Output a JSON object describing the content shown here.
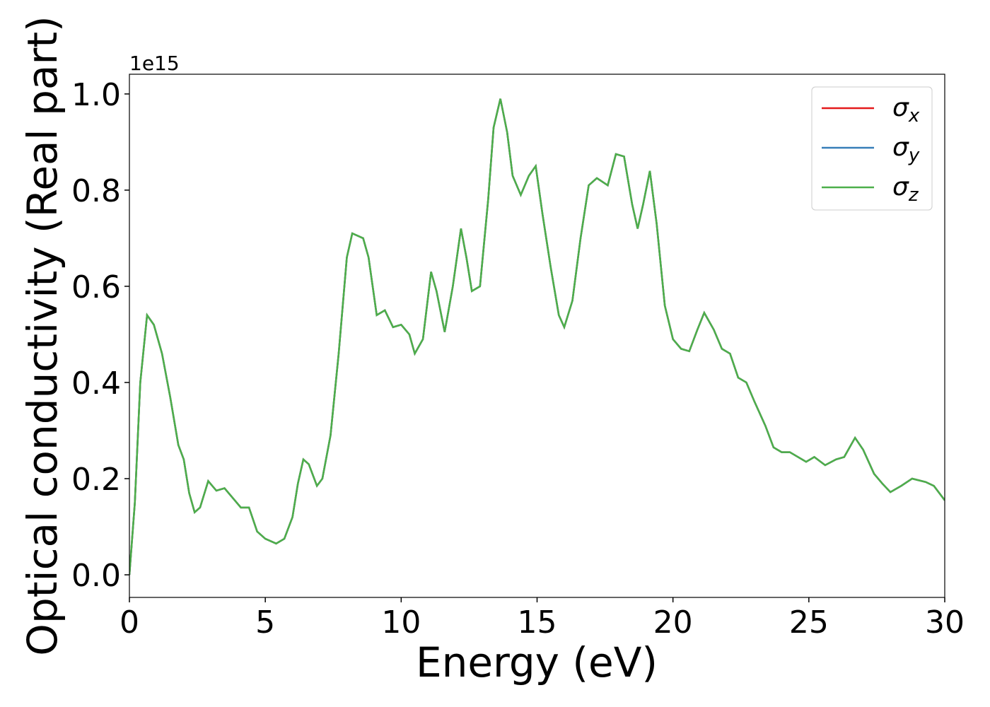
{
  "chart_data": {
    "type": "line",
    "xlabel": "Energy (eV)",
    "ylabel": "Optical conductivity (Real part)",
    "y_offset_label": "1e15",
    "xlim": [
      0,
      30
    ],
    "xticks": [
      0,
      5,
      10,
      15,
      20,
      25,
      30
    ],
    "ylim": [
      -0.047,
      1.041
    ],
    "yticks": [
      {
        "value": 0,
        "label": "0.0"
      },
      {
        "value": 0.2,
        "label": "0.2"
      },
      {
        "value": 0.4,
        "label": "0.4"
      },
      {
        "value": 0.6,
        "label": "0.6"
      },
      {
        "value": 0.8,
        "label": "0.8"
      },
      {
        "value": 1,
        "label": "1.0"
      }
    ],
    "legend": "upper right",
    "x": [
      0,
      0.2,
      0.4,
      0.65,
      0.9,
      1.2,
      1.5,
      1.8,
      2.0,
      2.2,
      2.4,
      2.6,
      2.9,
      3.2,
      3.5,
      3.8,
      4.1,
      4.4,
      4.7,
      5.0,
      5.4,
      5.7,
      6.0,
      6.2,
      6.4,
      6.6,
      6.9,
      7.1,
      7.4,
      7.7,
      8.0,
      8.2,
      8.6,
      8.8,
      9.1,
      9.4,
      9.7,
      10.0,
      10.3,
      10.5,
      10.8,
      11.1,
      11.3,
      11.6,
      11.9,
      12.2,
      12.4,
      12.6,
      12.9,
      13.2,
      13.4,
      13.65,
      13.9,
      14.1,
      14.4,
      14.7,
      14.95,
      15.2,
      15.5,
      15.8,
      16.0,
      16.3,
      16.6,
      16.9,
      17.2,
      17.6,
      17.9,
      18.2,
      18.5,
      18.7,
      18.9,
      19.15,
      19.4,
      19.7,
      20.0,
      20.3,
      20.6,
      20.9,
      21.15,
      21.5,
      21.8,
      22.1,
      22.4,
      22.7,
      23.0,
      23.4,
      23.7,
      24.0,
      24.3,
      24.9,
      25.2,
      25.6,
      26.0,
      26.3,
      26.7,
      27.0,
      27.4,
      27.7,
      28.0,
      28.4,
      28.8,
      29.3,
      29.6,
      30.0
    ],
    "series": [
      {
        "name": "σx",
        "color": "#e41a1c",
        "values": [
          0,
          0.15,
          0.4,
          0.54,
          0.52,
          0.46,
          0.37,
          0.27,
          0.24,
          0.17,
          0.13,
          0.14,
          0.195,
          0.175,
          0.18,
          0.16,
          0.14,
          0.14,
          0.09,
          0.075,
          0.065,
          0.075,
          0.12,
          0.19,
          0.24,
          0.23,
          0.185,
          0.2,
          0.29,
          0.46,
          0.66,
          0.71,
          0.7,
          0.66,
          0.54,
          0.55,
          0.515,
          0.52,
          0.5,
          0.46,
          0.49,
          0.63,
          0.59,
          0.505,
          0.6,
          0.72,
          0.66,
          0.59,
          0.6,
          0.78,
          0.93,
          0.99,
          0.92,
          0.83,
          0.79,
          0.83,
          0.85,
          0.75,
          0.64,
          0.54,
          0.515,
          0.57,
          0.7,
          0.81,
          0.825,
          0.81,
          0.875,
          0.87,
          0.77,
          0.72,
          0.77,
          0.84,
          0.73,
          0.56,
          0.49,
          0.47,
          0.465,
          0.51,
          0.545,
          0.51,
          0.47,
          0.46,
          0.41,
          0.4,
          0.36,
          0.31,
          0.265,
          0.255,
          0.255,
          0.235,
          0.245,
          0.228,
          0.24,
          0.245,
          0.285,
          0.26,
          0.21,
          0.19,
          0.172,
          0.185,
          0.2,
          0.193,
          0.185,
          0.155
        ]
      },
      {
        "name": "σy",
        "color": "#377eb8",
        "values": [
          0,
          0.15,
          0.4,
          0.54,
          0.52,
          0.46,
          0.37,
          0.27,
          0.24,
          0.17,
          0.13,
          0.14,
          0.195,
          0.175,
          0.18,
          0.16,
          0.14,
          0.14,
          0.09,
          0.075,
          0.065,
          0.075,
          0.12,
          0.19,
          0.24,
          0.23,
          0.185,
          0.2,
          0.29,
          0.46,
          0.66,
          0.71,
          0.7,
          0.66,
          0.54,
          0.55,
          0.515,
          0.52,
          0.5,
          0.46,
          0.49,
          0.63,
          0.59,
          0.505,
          0.6,
          0.72,
          0.66,
          0.59,
          0.6,
          0.78,
          0.93,
          0.99,
          0.92,
          0.83,
          0.79,
          0.83,
          0.85,
          0.75,
          0.64,
          0.54,
          0.515,
          0.57,
          0.7,
          0.81,
          0.825,
          0.81,
          0.875,
          0.87,
          0.77,
          0.72,
          0.77,
          0.84,
          0.73,
          0.56,
          0.49,
          0.47,
          0.465,
          0.51,
          0.545,
          0.51,
          0.47,
          0.46,
          0.41,
          0.4,
          0.36,
          0.31,
          0.265,
          0.255,
          0.255,
          0.235,
          0.245,
          0.228,
          0.24,
          0.245,
          0.285,
          0.26,
          0.21,
          0.19,
          0.172,
          0.185,
          0.2,
          0.193,
          0.185,
          0.155
        ]
      },
      {
        "name": "σz",
        "color": "#4daf4a",
        "values": [
          0,
          0.15,
          0.4,
          0.54,
          0.52,
          0.46,
          0.37,
          0.27,
          0.24,
          0.17,
          0.13,
          0.14,
          0.195,
          0.175,
          0.18,
          0.16,
          0.14,
          0.14,
          0.09,
          0.075,
          0.065,
          0.075,
          0.12,
          0.19,
          0.24,
          0.23,
          0.185,
          0.2,
          0.29,
          0.46,
          0.66,
          0.71,
          0.7,
          0.66,
          0.54,
          0.55,
          0.515,
          0.52,
          0.5,
          0.46,
          0.49,
          0.63,
          0.59,
          0.505,
          0.6,
          0.72,
          0.66,
          0.59,
          0.6,
          0.78,
          0.93,
          0.99,
          0.92,
          0.83,
          0.79,
          0.83,
          0.85,
          0.75,
          0.64,
          0.54,
          0.515,
          0.57,
          0.7,
          0.81,
          0.825,
          0.81,
          0.875,
          0.87,
          0.77,
          0.72,
          0.77,
          0.84,
          0.73,
          0.56,
          0.49,
          0.47,
          0.465,
          0.51,
          0.545,
          0.51,
          0.47,
          0.46,
          0.41,
          0.4,
          0.36,
          0.31,
          0.265,
          0.255,
          0.255,
          0.235,
          0.245,
          0.228,
          0.24,
          0.245,
          0.285,
          0.26,
          0.21,
          0.19,
          0.172,
          0.185,
          0.2,
          0.193,
          0.185,
          0.155
        ]
      }
    ]
  }
}
